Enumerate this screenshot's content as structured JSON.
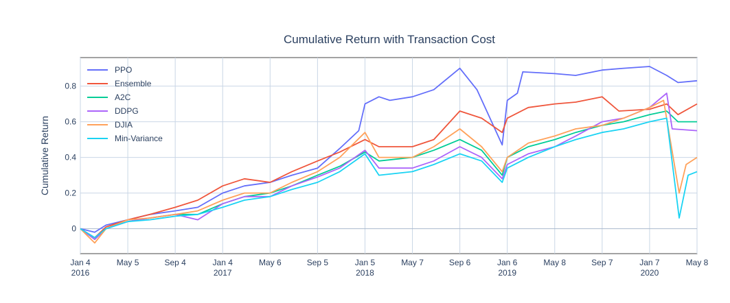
{
  "chart_data": {
    "type": "line",
    "title": "Cumulative Return with Transaction Cost",
    "xlabel": "",
    "ylabel": "Cumulative Return",
    "xlim": [
      "2016-01-04",
      "2020-05-08"
    ],
    "ylim": [
      -0.14,
      0.96
    ],
    "grid": true,
    "legend_position": "top-left",
    "y_ticks": [
      0,
      0.2,
      0.4,
      0.6,
      0.8
    ],
    "y_tick_labels": [
      "0",
      "0.2",
      "0.4",
      "0.6",
      "0.8"
    ],
    "x_ticks": [
      {
        "date": "2016-01-04",
        "label": "Jan 4",
        "year": "2016"
      },
      {
        "date": "2016-05-05",
        "label": "May 5",
        "year": ""
      },
      {
        "date": "2016-09-04",
        "label": "Sep 4",
        "year": ""
      },
      {
        "date": "2017-01-04",
        "label": "Jan 4",
        "year": "2017"
      },
      {
        "date": "2017-05-06",
        "label": "May 6",
        "year": ""
      },
      {
        "date": "2017-09-05",
        "label": "Sep 5",
        "year": ""
      },
      {
        "date": "2018-01-05",
        "label": "Jan 5",
        "year": "2018"
      },
      {
        "date": "2018-05-07",
        "label": "May 7",
        "year": ""
      },
      {
        "date": "2018-09-06",
        "label": "Sep 6",
        "year": ""
      },
      {
        "date": "2019-01-06",
        "label": "Jan 6",
        "year": "2019"
      },
      {
        "date": "2019-05-08",
        "label": "May 8",
        "year": ""
      },
      {
        "date": "2019-09-07",
        "label": "Sep 7",
        "year": ""
      },
      {
        "date": "2020-01-07",
        "label": "Jan 7",
        "year": "2020"
      },
      {
        "date": "2020-05-08",
        "label": "May 8",
        "year": ""
      }
    ],
    "series": [
      {
        "name": "PPO",
        "color": "#636efa",
        "points": [
          [
            "2016-01-04",
            0
          ],
          [
            "2016-02-10",
            -0.02
          ],
          [
            "2016-03-10",
            0.02
          ],
          [
            "2016-05-05",
            0.05
          ],
          [
            "2016-07-01",
            0.08
          ],
          [
            "2016-09-04",
            0.1
          ],
          [
            "2016-11-01",
            0.12
          ],
          [
            "2017-01-04",
            0.2
          ],
          [
            "2017-03-01",
            0.24
          ],
          [
            "2017-05-06",
            0.26
          ],
          [
            "2017-07-01",
            0.3
          ],
          [
            "2017-09-05",
            0.34
          ],
          [
            "2017-11-01",
            0.45
          ],
          [
            "2017-12-20",
            0.55
          ],
          [
            "2018-01-05",
            0.7
          ],
          [
            "2018-02-10",
            0.74
          ],
          [
            "2018-03-10",
            0.72
          ],
          [
            "2018-05-07",
            0.74
          ],
          [
            "2018-07-01",
            0.78
          ],
          [
            "2018-09-06",
            0.9
          ],
          [
            "2018-10-20",
            0.78
          ],
          [
            "2018-12-24",
            0.47
          ],
          [
            "2019-01-06",
            0.72
          ],
          [
            "2019-02-01",
            0.76
          ],
          [
            "2019-02-15",
            0.88
          ],
          [
            "2019-05-08",
            0.87
          ],
          [
            "2019-07-01",
            0.86
          ],
          [
            "2019-09-07",
            0.89
          ],
          [
            "2019-11-01",
            0.9
          ],
          [
            "2020-01-07",
            0.91
          ],
          [
            "2020-02-20",
            0.86
          ],
          [
            "2020-03-20",
            0.82
          ],
          [
            "2020-05-08",
            0.83
          ]
        ]
      },
      {
        "name": "Ensemble",
        "color": "#ef553b",
        "points": [
          [
            "2016-01-04",
            0
          ],
          [
            "2016-02-10",
            -0.05
          ],
          [
            "2016-03-10",
            0.01
          ],
          [
            "2016-05-05",
            0.05
          ],
          [
            "2016-07-01",
            0.08
          ],
          [
            "2016-09-04",
            0.12
          ],
          [
            "2016-11-01",
            0.16
          ],
          [
            "2017-01-04",
            0.24
          ],
          [
            "2017-03-01",
            0.28
          ],
          [
            "2017-05-06",
            0.26
          ],
          [
            "2017-07-01",
            0.32
          ],
          [
            "2017-09-05",
            0.38
          ],
          [
            "2017-11-01",
            0.43
          ],
          [
            "2018-01-05",
            0.5
          ],
          [
            "2018-02-10",
            0.46
          ],
          [
            "2018-05-07",
            0.46
          ],
          [
            "2018-07-01",
            0.5
          ],
          [
            "2018-09-06",
            0.66
          ],
          [
            "2018-11-01",
            0.62
          ],
          [
            "2018-12-24",
            0.54
          ],
          [
            "2019-01-06",
            0.62
          ],
          [
            "2019-03-01",
            0.68
          ],
          [
            "2019-05-08",
            0.7
          ],
          [
            "2019-07-01",
            0.71
          ],
          [
            "2019-09-07",
            0.74
          ],
          [
            "2019-10-20",
            0.66
          ],
          [
            "2020-01-07",
            0.67
          ],
          [
            "2020-02-20",
            0.7
          ],
          [
            "2020-03-20",
            0.64
          ],
          [
            "2020-05-08",
            0.7
          ]
        ]
      },
      {
        "name": "A2C",
        "color": "#00cc96",
        "points": [
          [
            "2016-01-04",
            0
          ],
          [
            "2016-02-10",
            -0.06
          ],
          [
            "2016-03-10",
            0.0
          ],
          [
            "2016-05-05",
            0.04
          ],
          [
            "2016-07-01",
            0.06
          ],
          [
            "2016-09-04",
            0.08
          ],
          [
            "2016-11-01",
            0.08
          ],
          [
            "2017-01-04",
            0.14
          ],
          [
            "2017-03-01",
            0.18
          ],
          [
            "2017-05-06",
            0.2
          ],
          [
            "2017-07-01",
            0.24
          ],
          [
            "2017-09-05",
            0.3
          ],
          [
            "2017-11-01",
            0.35
          ],
          [
            "2018-01-05",
            0.43
          ],
          [
            "2018-02-10",
            0.38
          ],
          [
            "2018-05-07",
            0.4
          ],
          [
            "2018-07-01",
            0.44
          ],
          [
            "2018-09-06",
            0.5
          ],
          [
            "2018-11-01",
            0.44
          ],
          [
            "2018-12-24",
            0.3
          ],
          [
            "2019-01-06",
            0.4
          ],
          [
            "2019-03-01",
            0.46
          ],
          [
            "2019-05-08",
            0.5
          ],
          [
            "2019-07-01",
            0.54
          ],
          [
            "2019-09-07",
            0.58
          ],
          [
            "2019-11-01",
            0.6
          ],
          [
            "2020-01-07",
            0.64
          ],
          [
            "2020-02-20",
            0.66
          ],
          [
            "2020-03-20",
            0.6
          ],
          [
            "2020-05-08",
            0.6
          ]
        ]
      },
      {
        "name": "DDPG",
        "color": "#ab63fa",
        "points": [
          [
            "2016-01-04",
            0
          ],
          [
            "2016-02-10",
            -0.06
          ],
          [
            "2016-03-10",
            0.0
          ],
          [
            "2016-05-05",
            0.04
          ],
          [
            "2016-07-01",
            0.06
          ],
          [
            "2016-09-04",
            0.08
          ],
          [
            "2016-11-01",
            0.05
          ],
          [
            "2017-01-04",
            0.14
          ],
          [
            "2017-03-01",
            0.18
          ],
          [
            "2017-05-06",
            0.18
          ],
          [
            "2017-07-01",
            0.24
          ],
          [
            "2017-09-05",
            0.29
          ],
          [
            "2017-11-01",
            0.34
          ],
          [
            "2018-01-05",
            0.44
          ],
          [
            "2018-02-10",
            0.34
          ],
          [
            "2018-05-07",
            0.34
          ],
          [
            "2018-07-01",
            0.38
          ],
          [
            "2018-09-06",
            0.46
          ],
          [
            "2018-11-01",
            0.4
          ],
          [
            "2018-12-24",
            0.28
          ],
          [
            "2019-01-06",
            0.36
          ],
          [
            "2019-03-01",
            0.42
          ],
          [
            "2019-05-08",
            0.46
          ],
          [
            "2019-07-01",
            0.52
          ],
          [
            "2019-09-07",
            0.6
          ],
          [
            "2019-11-01",
            0.62
          ],
          [
            "2020-01-07",
            0.68
          ],
          [
            "2020-02-20",
            0.76
          ],
          [
            "2020-03-05",
            0.56
          ],
          [
            "2020-05-08",
            0.55
          ]
        ]
      },
      {
        "name": "DJIA",
        "color": "#ffa15a",
        "points": [
          [
            "2016-01-04",
            0
          ],
          [
            "2016-02-10",
            -0.08
          ],
          [
            "2016-03-10",
            0.0
          ],
          [
            "2016-05-05",
            0.05
          ],
          [
            "2016-07-01",
            0.06
          ],
          [
            "2016-09-04",
            0.08
          ],
          [
            "2016-11-01",
            0.1
          ],
          [
            "2017-01-04",
            0.16
          ],
          [
            "2017-03-01",
            0.2
          ],
          [
            "2017-05-06",
            0.2
          ],
          [
            "2017-07-01",
            0.26
          ],
          [
            "2017-09-05",
            0.32
          ],
          [
            "2017-11-01",
            0.4
          ],
          [
            "2018-01-05",
            0.54
          ],
          [
            "2018-02-10",
            0.4
          ],
          [
            "2018-05-07",
            0.4
          ],
          [
            "2018-07-01",
            0.46
          ],
          [
            "2018-09-06",
            0.56
          ],
          [
            "2018-11-01",
            0.46
          ],
          [
            "2018-12-24",
            0.32
          ],
          [
            "2019-01-06",
            0.4
          ],
          [
            "2019-03-01",
            0.48
          ],
          [
            "2019-05-08",
            0.52
          ],
          [
            "2019-07-01",
            0.56
          ],
          [
            "2019-09-07",
            0.58
          ],
          [
            "2019-11-01",
            0.62
          ],
          [
            "2020-01-07",
            0.68
          ],
          [
            "2020-02-12",
            0.72
          ],
          [
            "2020-03-23",
            0.2
          ],
          [
            "2020-04-10",
            0.36
          ],
          [
            "2020-05-08",
            0.4
          ]
        ]
      },
      {
        "name": "Min-Variance",
        "color": "#19d3f3",
        "points": [
          [
            "2016-01-04",
            0
          ],
          [
            "2016-02-10",
            -0.05
          ],
          [
            "2016-03-10",
            0.0
          ],
          [
            "2016-05-05",
            0.04
          ],
          [
            "2016-07-01",
            0.05
          ],
          [
            "2016-09-04",
            0.07
          ],
          [
            "2016-11-01",
            0.08
          ],
          [
            "2017-01-04",
            0.12
          ],
          [
            "2017-03-01",
            0.16
          ],
          [
            "2017-05-06",
            0.18
          ],
          [
            "2017-07-01",
            0.22
          ],
          [
            "2017-09-05",
            0.26
          ],
          [
            "2017-11-01",
            0.32
          ],
          [
            "2018-01-05",
            0.42
          ],
          [
            "2018-02-10",
            0.3
          ],
          [
            "2018-05-07",
            0.32
          ],
          [
            "2018-07-01",
            0.36
          ],
          [
            "2018-09-06",
            0.42
          ],
          [
            "2018-11-01",
            0.38
          ],
          [
            "2018-12-24",
            0.26
          ],
          [
            "2019-01-06",
            0.34
          ],
          [
            "2019-03-01",
            0.4
          ],
          [
            "2019-05-08",
            0.46
          ],
          [
            "2019-07-01",
            0.5
          ],
          [
            "2019-09-07",
            0.54
          ],
          [
            "2019-11-01",
            0.56
          ],
          [
            "2020-01-07",
            0.6
          ],
          [
            "2020-02-20",
            0.62
          ],
          [
            "2020-03-23",
            0.06
          ],
          [
            "2020-04-15",
            0.3
          ],
          [
            "2020-05-08",
            0.32
          ]
        ]
      }
    ]
  }
}
